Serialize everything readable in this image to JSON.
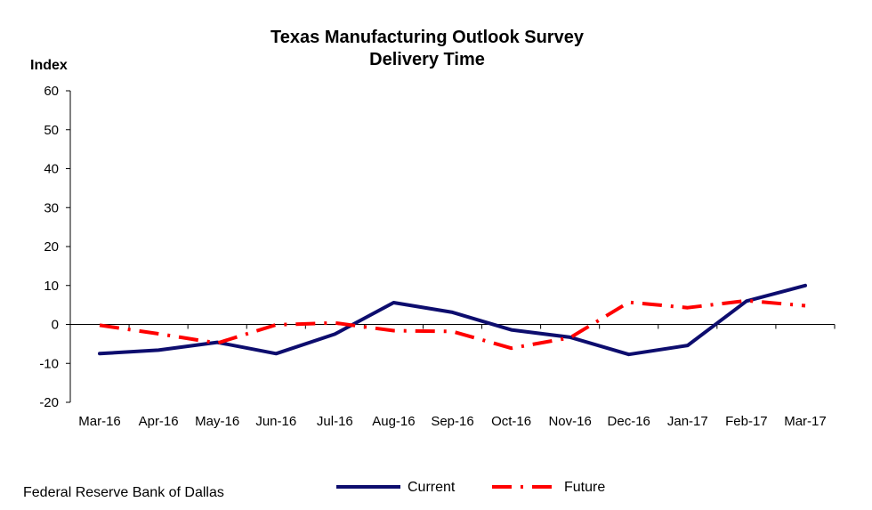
{
  "chart_data": {
    "type": "line",
    "title": "Texas Manufacturing Outlook Survey",
    "subtitle": "Delivery Time",
    "ylabel": "Index",
    "xlabel": "",
    "ylim": [
      -20,
      60
    ],
    "yticks": [
      -20,
      -10,
      0,
      10,
      20,
      30,
      40,
      50,
      60
    ],
    "grid": false,
    "legend_position": "bottom",
    "categories": [
      "Mar-16",
      "Apr-16",
      "May-16",
      "Jun-16",
      "Jul-16",
      "Aug-16",
      "Sep-16",
      "Oct-16",
      "Nov-16",
      "Dec-16",
      "Jan-17",
      "Feb-17",
      "Mar-17"
    ],
    "series": [
      {
        "name": "Current",
        "color": "#0d0d6e",
        "style": "solid",
        "values": [
          -7.5,
          -6.6,
          -4.6,
          -7.5,
          -2.5,
          5.6,
          3.1,
          -1.4,
          -3.3,
          -7.7,
          -5.4,
          6.0,
          10.0
        ]
      },
      {
        "name": "Future",
        "color": "#ff0000",
        "style": "dash-dot",
        "values": [
          -0.2,
          -2.4,
          -4.8,
          -0.1,
          0.4,
          -1.6,
          -1.8,
          -6.1,
          -3.4,
          5.7,
          4.3,
          6.1,
          4.8
        ]
      }
    ]
  },
  "source": "Federal Reserve Bank of Dallas"
}
